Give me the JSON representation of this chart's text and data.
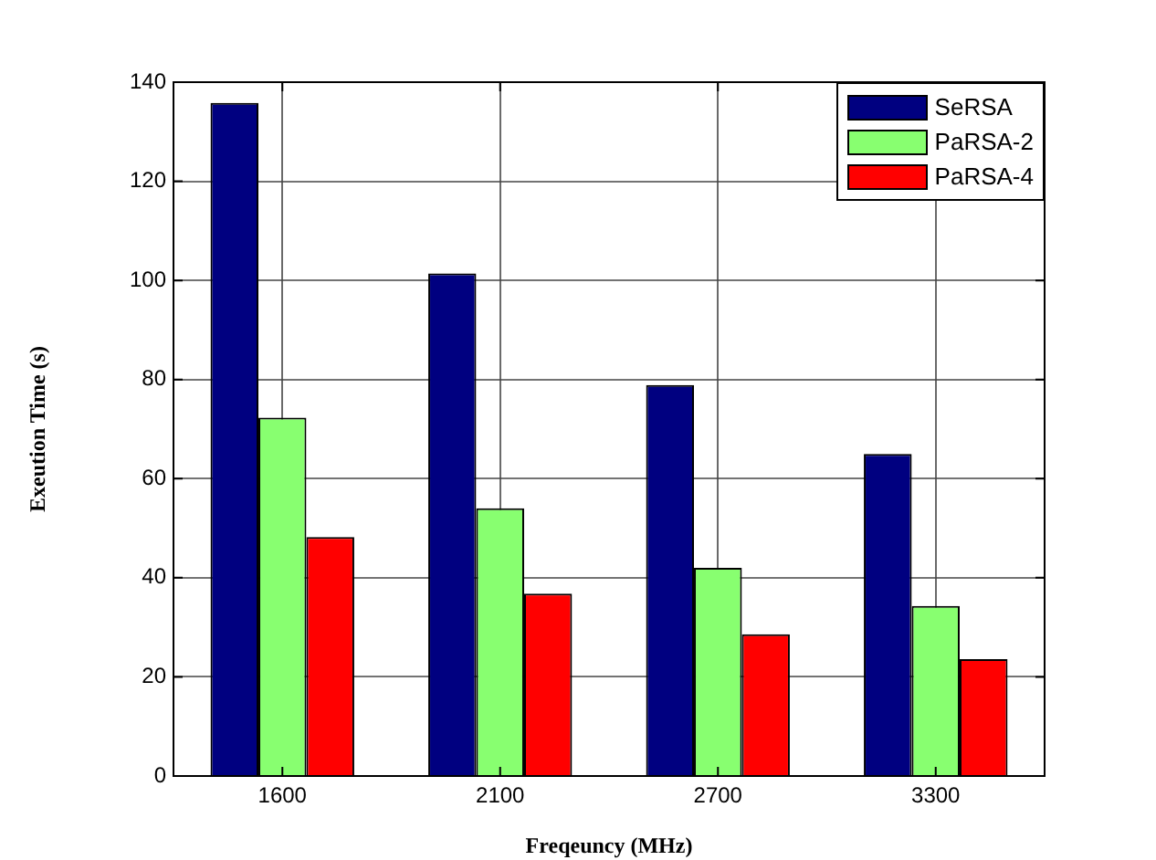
{
  "chart_data": {
    "type": "bar",
    "xlabel": "Freqeuncy (MHz)",
    "ylabel": "Exeution Time (s)",
    "categories": [
      "1600",
      "2100",
      "2700",
      "3300"
    ],
    "series": [
      {
        "name": "SeRSA",
        "color": "#000080",
        "values": [
          135.8,
          101.4,
          78.9,
          65.0
        ]
      },
      {
        "name": "PaRSA-2",
        "color": "#88ff70",
        "values": [
          72.3,
          54.0,
          42.0,
          34.3
        ]
      },
      {
        "name": "PaRSA-4",
        "color": "#ff0000",
        "values": [
          48.2,
          36.8,
          28.6,
          23.6
        ]
      }
    ],
    "ylim": [
      0,
      140
    ],
    "yticks": [
      0,
      20,
      40,
      60,
      80,
      100,
      120,
      140
    ],
    "grid": true,
    "legend": "top right"
  }
}
